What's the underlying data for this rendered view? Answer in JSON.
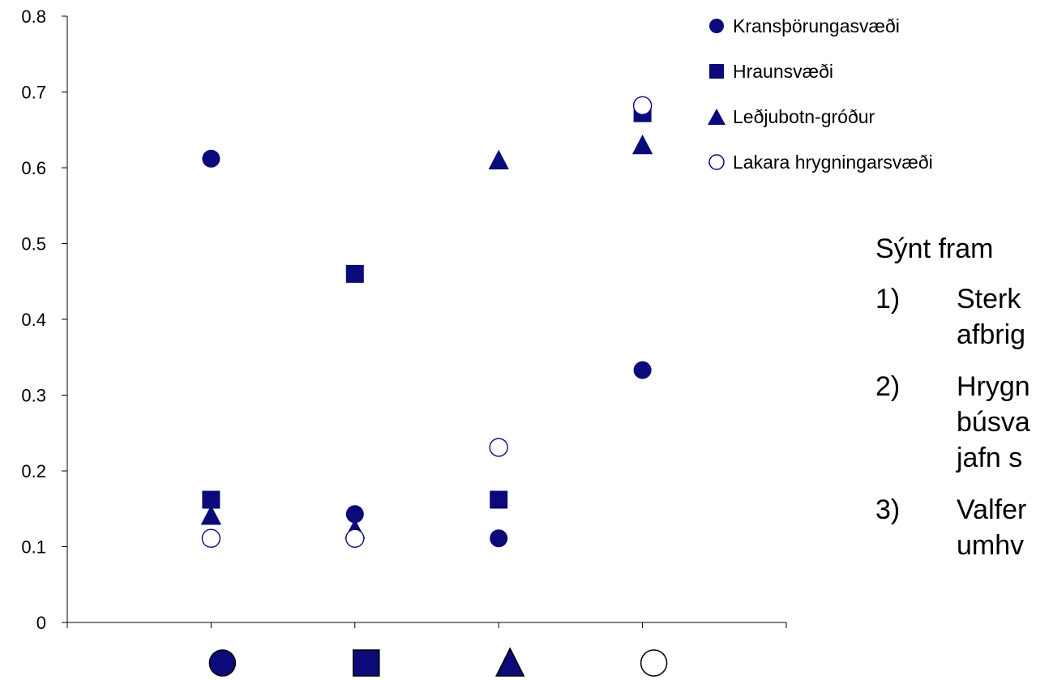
{
  "chart_data": {
    "type": "scatter",
    "title": "",
    "xlabel": "",
    "ylabel": "",
    "ylim": [
      0,
      0.8
    ],
    "yticks": [
      "0",
      "0.1",
      "0.2",
      "0.3",
      "0.4",
      "0.5",
      "0.6",
      "0.7",
      "0.8"
    ],
    "categories": [
      "circle",
      "square",
      "triangle",
      "open-circle"
    ],
    "category_icons": [
      {
        "shape": "circle",
        "fill": "#0a0a7a"
      },
      {
        "shape": "square",
        "fill": "#0a0a7a"
      },
      {
        "shape": "triangle",
        "fill": "#0a0a7a"
      },
      {
        "shape": "circle",
        "fill": "#ffffff"
      }
    ],
    "series": [
      {
        "name": "Kransþörungasvæði",
        "marker": "circle",
        "filled": true,
        "values": [
          0.612,
          0.143,
          0.111,
          0.333
        ]
      },
      {
        "name": "Hraunsvæði",
        "marker": "square",
        "filled": true,
        "values": [
          0.162,
          0.46,
          0.162,
          0.672
        ]
      },
      {
        "name": "Leðjubotn-gróður",
        "marker": "triangle",
        "filled": true,
        "values": [
          0.14,
          0.122,
          0.609,
          0.629
        ]
      },
      {
        "name": "Lakara hrygningarsvæði",
        "marker": "circle",
        "filled": false,
        "values": [
          0.111,
          0.111,
          0.231,
          0.682
        ]
      }
    ],
    "legend_position": "top-right",
    "grid": false,
    "colors": {
      "marker": "#0a0a7a",
      "axis": "#000000"
    }
  },
  "notes": {
    "heading": "Sýnt fram",
    "items": [
      {
        "num": "1)",
        "lines": [
          "Sterk",
          "afbrig"
        ]
      },
      {
        "num": "2)",
        "lines": [
          "Hrygn",
          "búsva",
          "jafn s"
        ]
      },
      {
        "num": "3)",
        "lines": [
          "Valfer",
          "umhv"
        ]
      }
    ]
  }
}
